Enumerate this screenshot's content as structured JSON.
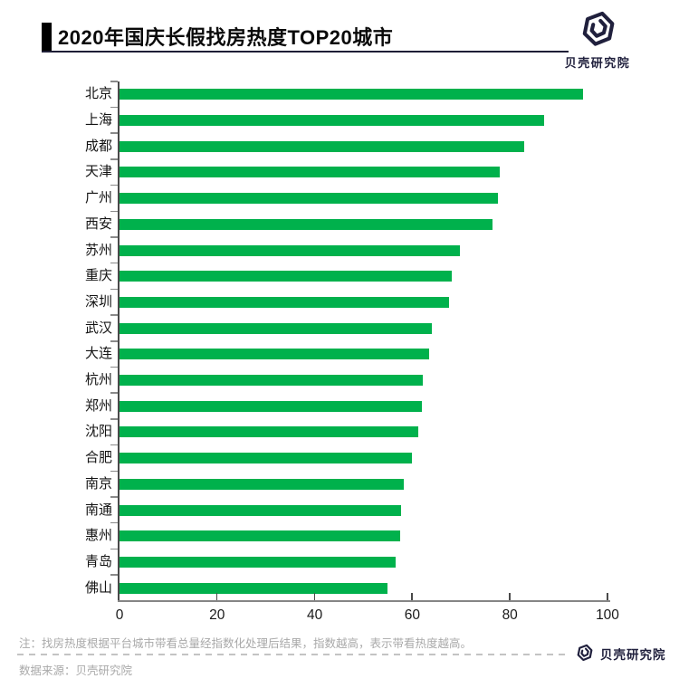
{
  "header": {
    "title": "2020年国庆长假找房热度TOP20城市",
    "logo_text": "贝壳研究院"
  },
  "chart_data": {
    "type": "bar",
    "orientation": "horizontal",
    "title": "2020年国庆长假找房热度TOP20城市",
    "categories": [
      "北京",
      "上海",
      "成都",
      "天津",
      "广州",
      "西安",
      "苏州",
      "重庆",
      "深圳",
      "武汉",
      "大连",
      "杭州",
      "郑州",
      "沈阳",
      "合肥",
      "南京",
      "南通",
      "惠州",
      "青岛",
      "佛山"
    ],
    "values": [
      95,
      87,
      83,
      78,
      77.5,
      76.5,
      69.7,
      68,
      67.5,
      64,
      63.5,
      62.2,
      62,
      61.3,
      60,
      58.2,
      57.6,
      57.5,
      56.6,
      55
    ],
    "xlabel": "",
    "ylabel": "",
    "xlim": [
      0,
      100
    ],
    "x_ticks": [
      0,
      20,
      40,
      60,
      80,
      100
    ],
    "bar_color": "#00b14c",
    "grid": false,
    "legend_position": "none"
  },
  "footer": {
    "note": "注：找房热度根据平台城市带看总量经指数化处理后结果，指数越高，表示带看热度越高。",
    "source": "数据来源：贝壳研究院",
    "logo_text": "贝壳研究院"
  },
  "colors": {
    "bar": "#00b14c",
    "axis": "#4a4a4a",
    "axis_light": "#858585",
    "text_dark": "#141414",
    "text_grey": "#a9a9a9",
    "brand_navy": "#20203d",
    "accent_black": "#000000"
  }
}
